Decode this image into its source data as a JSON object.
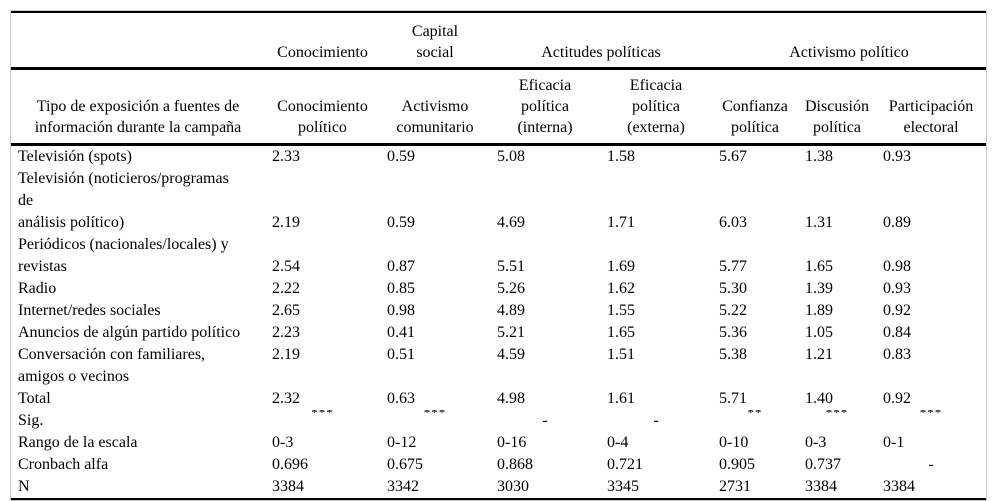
{
  "table": {
    "corner_label": "",
    "col_header_label": "Tipo de exposición a fuentes de\ninformación durante la campaña",
    "groups": [
      {
        "label": "Conocimiento",
        "span": 1
      },
      {
        "label": "Capital\nsocial",
        "span": 1
      },
      {
        "label": "Actitudes políticas",
        "span": 2
      },
      {
        "label": "Activismo político",
        "span": 3
      }
    ],
    "columns": [
      "Conocimiento\npolítico",
      "Activismo\ncomunitario",
      "Eficacia\npolítica\n(interna)",
      "Eficacia\npolítica\n(externa)",
      "Confianza\npolítica",
      "Discusión\npolítica",
      "Participación\nelectoral"
    ],
    "rows": [
      {
        "label": "Televisión (spots)",
        "values": [
          "2.33",
          "0.59",
          "5.08",
          "1.58",
          "5.67",
          "1.38",
          "0.93"
        ]
      },
      {
        "label": "Televisión (noticieros/programas",
        "values": []
      },
      {
        "label": "de",
        "values": []
      },
      {
        "label": "análisis político)",
        "values": [
          "2.19",
          "0.59",
          "4.69",
          "1.71",
          "6.03",
          "1.31",
          "0.89"
        ]
      },
      {
        "label": "Periódicos (nacionales/locales) y",
        "values": []
      },
      {
        "label": "revistas",
        "values": [
          "2.54",
          "0.87",
          "5.51",
          "1.69",
          "5.77",
          "1.65",
          "0.98"
        ]
      },
      {
        "label": "Radio",
        "values": [
          "2.22",
          "0.85",
          "5.26",
          "1.62",
          "5.30",
          "1.39",
          "0.93"
        ]
      },
      {
        "label": "Internet/redes sociales",
        "values": [
          "2.65",
          "0.98",
          "4.89",
          "1.55",
          "5.22",
          "1.89",
          "0.92"
        ]
      },
      {
        "label": "Anuncios de algún partido político",
        "values": [
          "2.23",
          "0.41",
          "5.21",
          "1.65",
          "5.36",
          "1.05",
          "0.84"
        ]
      },
      {
        "label": "Conversación con familiares,",
        "values": [
          "2.19",
          "0.51",
          "4.59",
          "1.51",
          "5.38",
          "1.21",
          "0.83"
        ]
      },
      {
        "label": "amigos o vecinos",
        "values": []
      },
      {
        "label": "Total",
        "values": [
          "2.32",
          "0.63",
          "4.98",
          "1.61",
          "5.71",
          "1.40",
          "0.92"
        ]
      },
      {
        "label": "Sig.",
        "sig": true,
        "values": [
          "***",
          "***",
          "-",
          "-",
          "**",
          "***",
          "***"
        ]
      },
      {
        "label": "Rango de la escala",
        "values": [
          "0-3",
          "0-12",
          "0-16",
          "0-4",
          "0-10",
          "0-3",
          "0-1"
        ]
      },
      {
        "label": "Cronbach alfa",
        "values": [
          "0.696",
          "0.675",
          "0.868",
          "0.721",
          "0.905",
          "0.737",
          "-"
        ]
      },
      {
        "label": "N",
        "values": [
          "3384",
          "3342",
          "3030",
          "3345",
          "2731",
          "3384",
          "3384"
        ]
      }
    ]
  }
}
